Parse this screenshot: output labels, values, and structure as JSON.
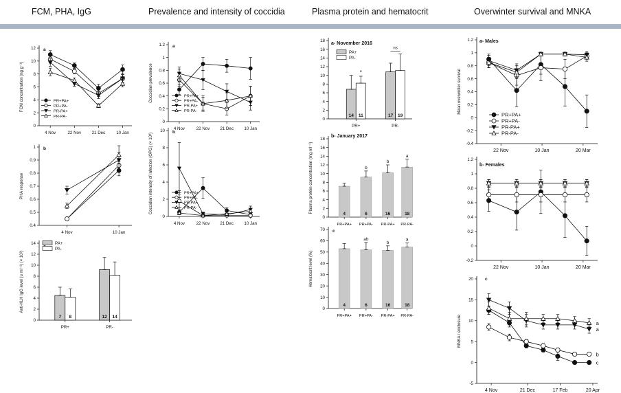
{
  "headers": [
    "FCM, PHA, IgG",
    "Prevalence and intensity of coccidia",
    "Plasma protein and hematocrit",
    "Overwinter survival and MNKA"
  ],
  "colors": {
    "header_bar": "#a9b5c4",
    "bar_fill_grey": "#c8c8c8",
    "bar_fill_white": "#ffffff",
    "ink": "#111111"
  },
  "chart_data": [
    {
      "id": "fcm",
      "type": "line",
      "panel_label": "a",
      "ylabel": "FCM concentration (ng g⁻¹)",
      "xlabel": "",
      "categories": [
        "4 Nov",
        "22 Nov",
        "21 Dec",
        "10 Jan"
      ],
      "ylim": [
        0,
        12
      ],
      "yticks": [
        0,
        2,
        4,
        6,
        8,
        10,
        12
      ],
      "legend": "bottom-left",
      "series": [
        {
          "name": "PR+PA+",
          "marker": "filled-circle",
          "values": [
            11.0,
            9.3,
            5.8,
            8.7
          ],
          "err": [
            0.6,
            0.4,
            0.6,
            0.7
          ]
        },
        {
          "name": "PR+PA-",
          "marker": "open-circle",
          "values": [
            10.3,
            8.4,
            5.0,
            7.3
          ],
          "err": [
            0.6,
            0.4,
            0.5,
            0.6
          ]
        },
        {
          "name": "PR-PA+",
          "marker": "filled-triangle",
          "values": [
            9.8,
            6.5,
            4.7,
            7.3
          ],
          "err": [
            0.6,
            0.4,
            0.5,
            0.6
          ]
        },
        {
          "name": "PR-PA-",
          "marker": "open-triangle",
          "values": [
            8.3,
            7.0,
            3.1,
            6.5
          ],
          "err": [
            0.6,
            0.4,
            0.3,
            0.5
          ]
        }
      ]
    },
    {
      "id": "pha",
      "type": "line",
      "panel_label": "b",
      "ylabel": "PHA response",
      "xlabel": "",
      "categories": [
        "4 Nov",
        "10 Jan"
      ],
      "ylim": [
        0.4,
        1.0
      ],
      "yticks": [
        0.4,
        0.5,
        0.6,
        0.7,
        0.8,
        0.9,
        1.0
      ],
      "series": [
        {
          "name": "PR+PA+",
          "marker": "filled-circle",
          "values": [
            0.45,
            0.82
          ],
          "err": [
            0.01,
            0.04
          ]
        },
        {
          "name": "PR+PA-",
          "marker": "open-circle",
          "values": [
            0.45,
            0.86
          ],
          "err": [
            0.01,
            0.03
          ]
        },
        {
          "name": "PR-PA+",
          "marker": "filled-triangle",
          "values": [
            0.67,
            0.9
          ],
          "err": [
            0.03,
            0.06
          ]
        },
        {
          "name": "PR-PA-",
          "marker": "open-triangle",
          "values": [
            0.55,
            0.94
          ],
          "err": [
            0.02,
            0.07
          ]
        }
      ]
    },
    {
      "id": "igg",
      "type": "bar",
      "panel_label": "c",
      "ylabel": "Anti-KLH IgG level (u ml⁻¹) (× 10³)",
      "xlabel": "",
      "categories": [
        "PR+",
        "PR-"
      ],
      "ylim": [
        0,
        14
      ],
      "yticks": [
        0,
        2,
        4,
        6,
        8,
        10,
        12,
        14
      ],
      "legend": "top-left",
      "series": [
        {
          "name": "PA+",
          "fill": "grey",
          "values": [
            4.5,
            9.2
          ],
          "err": [
            1.5,
            2.2
          ],
          "n": [
            "7",
            "12"
          ]
        },
        {
          "name": "PA-",
          "fill": "white",
          "values": [
            4.2,
            8.2
          ],
          "err": [
            1.5,
            2.4
          ],
          "n": [
            "8",
            "14"
          ]
        }
      ]
    },
    {
      "id": "prev",
      "type": "line",
      "panel_label": "a",
      "ylabel": "Coccidian prevalence",
      "xlabel": "",
      "categories": [
        "4 Nov",
        "22 Nov",
        "21 Dec",
        "10 Jan"
      ],
      "ylim": [
        0,
        1.2
      ],
      "yticks": [
        0,
        0.2,
        0.4,
        0.6,
        0.8,
        1.0,
        1.2
      ],
      "legend": "bottom-left",
      "series": [
        {
          "name": "PR+PA+",
          "marker": "filled-circle",
          "values": [
            0.5,
            0.9,
            0.87,
            0.83
          ],
          "err": [
            0.08,
            0.1,
            0.1,
            0.17
          ]
        },
        {
          "name": "PR+PA-",
          "marker": "open-circle",
          "values": [
            0.65,
            0.28,
            0.2,
            0.4
          ],
          "err": [
            0.1,
            0.12,
            0.1,
            0.15
          ]
        },
        {
          "name": "PR-PA+",
          "marker": "filled-triangle",
          "values": [
            0.75,
            0.65,
            0.47,
            0.3
          ],
          "err": [
            0.1,
            0.15,
            0.12,
            0.12
          ]
        },
        {
          "name": "PR-PA-",
          "marker": "open-triangle",
          "values": [
            0.72,
            0.28,
            0.33,
            0.4
          ],
          "err": [
            0.1,
            0.1,
            0.12,
            0.15
          ]
        }
      ]
    },
    {
      "id": "intensity",
      "type": "line",
      "panel_label": "b",
      "ylabel": "Coccidian intensity of infection (OPG) (× 10³)",
      "xlabel": "",
      "categories": [
        "4 Nov",
        "22 Nov",
        "21 Dec",
        "10 Jan"
      ],
      "ylim": [
        0,
        10
      ],
      "yticks": [
        0,
        2,
        4,
        6,
        8,
        10
      ],
      "legend": "bottom-left",
      "series": [
        {
          "name": "PR+PA+",
          "marker": "filled-circle",
          "values": [
            0.5,
            3.3,
            0.7,
            0.2
          ],
          "err": [
            0.3,
            1.2,
            0.3,
            0.3
          ]
        },
        {
          "name": "PR+PA-",
          "marker": "open-circle",
          "values": [
            1.8,
            0.1,
            0.1,
            0.1
          ],
          "err": [
            1.2,
            0.1,
            0.1,
            0.1
          ]
        },
        {
          "name": "PR-PA+",
          "marker": "filled-triangle",
          "values": [
            5.6,
            0.3,
            0.2,
            0.8
          ],
          "err": [
            3.0,
            0.2,
            0.1,
            0.4
          ]
        },
        {
          "name": "PR-PA-",
          "marker": "open-triangle",
          "values": [
            0.4,
            0.1,
            0.3,
            0.6
          ],
          "err": [
            0.2,
            0.1,
            0.2,
            0.3
          ]
        }
      ]
    },
    {
      "id": "protein-nov",
      "type": "bar",
      "panel_label": "a- November 2016",
      "ylabel": "",
      "xlabel": "",
      "categories": [
        "PR+",
        "PR-"
      ],
      "ylim": [
        0,
        18
      ],
      "yticks": [
        0,
        2,
        4,
        6,
        8,
        10,
        12,
        14,
        16,
        18
      ],
      "legend": "top-left",
      "series": [
        {
          "name": "PA+",
          "fill": "grey",
          "values": [
            6.8,
            10.8
          ],
          "err": [
            3.2,
            2.0
          ],
          "n": [
            "14",
            "17"
          ]
        },
        {
          "name": "PA-",
          "fill": "white",
          "values": [
            8.2,
            11.1
          ],
          "err": [
            1.6,
            3.8
          ],
          "n": [
            "11",
            "19"
          ]
        }
      ],
      "annotations": [
        "*",
        "ns"
      ]
    },
    {
      "id": "protein-jan",
      "type": "bar",
      "panel_label": "b- January 2017",
      "ylabel": "Plasma protein concentration (mg ml⁻¹)",
      "xlabel": "",
      "categories": [
        "PR+PA+",
        "PR+PA-",
        "PR-PA+",
        "PR-PA-"
      ],
      "ylim": [
        0,
        18
      ],
      "yticks": [
        0,
        2,
        4,
        6,
        8,
        10,
        12,
        14,
        16,
        18
      ],
      "series": [
        {
          "name": "",
          "fill": "grey",
          "values": [
            7.1,
            9.2,
            10.2,
            11.5
          ],
          "err": [
            0.7,
            1.4,
            1.8,
            1.8
          ],
          "n": [
            "4",
            "6",
            "16",
            "18"
          ]
        }
      ],
      "annotations": [
        "",
        "b",
        "b",
        "a"
      ]
    },
    {
      "id": "hematocrit",
      "type": "bar",
      "panel_label": "c",
      "ylabel": "Hematocrit level (%)",
      "xlabel": "",
      "categories": [
        "PR+PA+",
        "PR+PA-",
        "PR-PA+",
        "PR-PA-"
      ],
      "ylim": [
        0,
        70
      ],
      "yticks": [
        0,
        10,
        20,
        30,
        40,
        50,
        60,
        70
      ],
      "series": [
        {
          "name": "",
          "fill": "grey",
          "values": [
            53,
            52,
            51.5,
            54.5
          ],
          "err": [
            4.5,
            6.5,
            4.0,
            3.5
          ],
          "n": [
            "4",
            "6",
            "16",
            "18"
          ]
        }
      ],
      "annotations": [
        "",
        "ab",
        "b",
        "a"
      ]
    },
    {
      "id": "surv-males",
      "type": "line",
      "panel_label": "a- Males",
      "ylabel": "Mean overwinter survival",
      "xlabel": "",
      "x_tick_labels": [
        "22 Nov",
        "10 Jan",
        "20 Mar"
      ],
      "ylim": [
        -0.4,
        1.2
      ],
      "yticks": [
        -0.4,
        -0.2,
        0.0,
        0.2,
        0.4,
        0.6,
        0.8,
        1.0,
        1.2
      ],
      "legend": "bottom-left",
      "series": [
        {
          "name": "PR+PA+",
          "marker": "filled-circle",
          "values": [
            0.9,
            0.42,
            0.82,
            0.48,
            0.1
          ],
          "err": [
            0.08,
            0.25,
            0.15,
            0.3,
            0.25
          ]
        },
        {
          "name": "PR+PA-",
          "marker": "open-circle",
          "values": [
            0.85,
            0.65,
            0.77,
            0.75,
            0.95
          ],
          "err": [
            0.08,
            0.15,
            0.2,
            0.15,
            0.05
          ]
        },
        {
          "name": "PR-PA+",
          "marker": "filled-triangle",
          "values": [
            0.88,
            0.73,
            0.98,
            0.98,
            0.97
          ],
          "err": [
            0.08,
            0.1,
            0.03,
            0.03,
            0.05
          ]
        },
        {
          "name": "PR-PA-",
          "marker": "open-triangle",
          "values": [
            0.85,
            0.7,
            0.98,
            0.98,
            0.93
          ],
          "err": [
            0.08,
            0.1,
            0.03,
            0.03,
            0.06
          ]
        }
      ]
    },
    {
      "id": "surv-females",
      "type": "line",
      "panel_label": "b- Females",
      "ylabel": "",
      "xlabel": "",
      "x_tick_labels": [
        "22 Nov",
        "10 Jan",
        "20 Mar"
      ],
      "ylim": [
        -0.2,
        1.2
      ],
      "yticks": [
        -0.2,
        0.0,
        0.2,
        0.4,
        0.6,
        0.8,
        1.0,
        1.2
      ],
      "series": [
        {
          "name": "PR+PA+",
          "marker": "filled-circle",
          "values": [
            0.63,
            0.47,
            0.75,
            0.42,
            0.07
          ],
          "err": [
            0.15,
            0.25,
            0.3,
            0.3,
            0.2
          ]
        },
        {
          "name": "PR+PA-",
          "marker": "open-circle",
          "values": [
            0.71,
            0.71,
            0.71,
            0.71,
            0.71
          ],
          "err": [
            0.1,
            0.1,
            0.1,
            0.1,
            0.1
          ]
        },
        {
          "name": "PR-PA+",
          "marker": "filled-triangle",
          "values": [
            0.87,
            0.87,
            0.87,
            0.87,
            0.87
          ],
          "err": [
            0.05,
            0.05,
            0.05,
            0.05,
            0.05
          ]
        },
        {
          "name": "PR-PA-",
          "marker": "open-triangle",
          "values": [
            0.87,
            0.87,
            0.87,
            0.87,
            0.87
          ],
          "err": [
            0.05,
            0.05,
            0.05,
            0.05,
            0.05
          ]
        }
      ]
    },
    {
      "id": "mnka",
      "type": "line",
      "panel_label": "c",
      "ylabel": "MNKA / enclosure",
      "xlabel": "",
      "x_tick_labels": [
        "4 Nov",
        "21 Dec",
        "17 Feb",
        "20 Apr"
      ],
      "ylim": [
        -5,
        20
      ],
      "yticks": [
        -5,
        0,
        5,
        10,
        15,
        20
      ],
      "series": [
        {
          "name": "PR+PA+",
          "marker": "filled-circle",
          "values": [
            12.5,
            9.5,
            4.0,
            3.0,
            1.5,
            0.0,
            0.0
          ],
          "err": [
            1.0,
            1.0,
            0.5,
            0.5,
            1.0,
            0.2,
            0.2
          ]
        },
        {
          "name": "PR+PA-",
          "marker": "open-circle",
          "values": [
            8.5,
            6.0,
            5.0,
            4.0,
            3.0,
            2.0,
            2.0
          ],
          "err": [
            0.8,
            0.8,
            0.5,
            0.5,
            0.5,
            0.4,
            0.4
          ]
        },
        {
          "name": "PR-PA+",
          "marker": "filled-triangle",
          "values": [
            15.0,
            13.0,
            10.0,
            9.0,
            9.0,
            9.0,
            8.0
          ],
          "err": [
            1.5,
            1.5,
            1.5,
            1.0,
            1.0,
            1.0,
            1.0
          ]
        },
        {
          "name": "PR-PA-",
          "marker": "open-triangle",
          "values": [
            13.0,
            10.5,
            10.5,
            10.5,
            10.5,
            10.0,
            9.5
          ],
          "err": [
            1.5,
            1.5,
            1.5,
            1.0,
            1.0,
            1.0,
            1.0
          ]
        }
      ],
      "end_labels": [
        "c",
        "b",
        "a",
        "a"
      ]
    }
  ]
}
